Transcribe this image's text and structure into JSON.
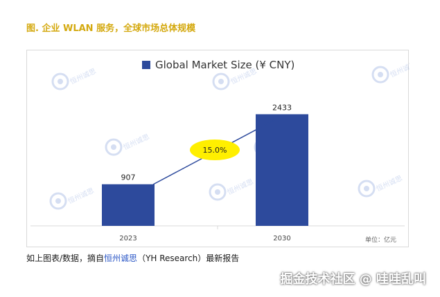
{
  "figure_title": "图. 企业 WLAN 服务，全球市场总体规模",
  "chart_data": {
    "type": "bar",
    "legend": {
      "label": "Global Market Size (¥ CNY)",
      "color": "#2d4a9c",
      "placement": "top-center"
    },
    "categories": [
      "2023",
      "2030"
    ],
    "values": [
      907,
      2433
    ],
    "bar_color": "#2d4a9c",
    "ylim": [
      0,
      2800
    ],
    "grid": false,
    "annotation": {
      "text": "15.0%",
      "type": "growth-arrow",
      "fill": "#ffef00"
    },
    "unit_label": "单位：亿元"
  },
  "watermark": {
    "text": "恒州诚思"
  },
  "caption": {
    "prefix": "如上图表/数据，摘自",
    "highlight": "恒州诚思",
    "suffix": "（YH Research）最新报告"
  },
  "footer_watermark": "掘金技术社区 @ 哇哇乱叫"
}
